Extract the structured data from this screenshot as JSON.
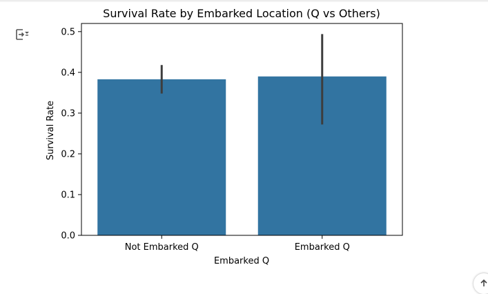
{
  "toolbar": {
    "output_icon": "output-toggle-icon",
    "scroll_icon": "arrow-up-icon"
  },
  "chart_data": {
    "type": "bar",
    "title": "Survival Rate by Embarked Location (Q vs Others)",
    "xlabel": "Embarked Q",
    "ylabel": "Survival Rate",
    "categories": [
      "Not Embarked Q",
      "Embarked Q"
    ],
    "values": [
      0.383,
      0.39
    ],
    "error_bars": [
      [
        0.348,
        0.418
      ],
      [
        0.272,
        0.494
      ]
    ],
    "ylim": [
      0,
      0.52
    ],
    "yticks": [
      0.0,
      0.1,
      0.2,
      0.3,
      0.4,
      0.5
    ],
    "ytick_labels": [
      "0.0",
      "0.1",
      "0.2",
      "0.3",
      "0.4",
      "0.5"
    ],
    "grid": false,
    "bar_color": "#3274a1",
    "errorbar_color": "#3d3d3d"
  }
}
